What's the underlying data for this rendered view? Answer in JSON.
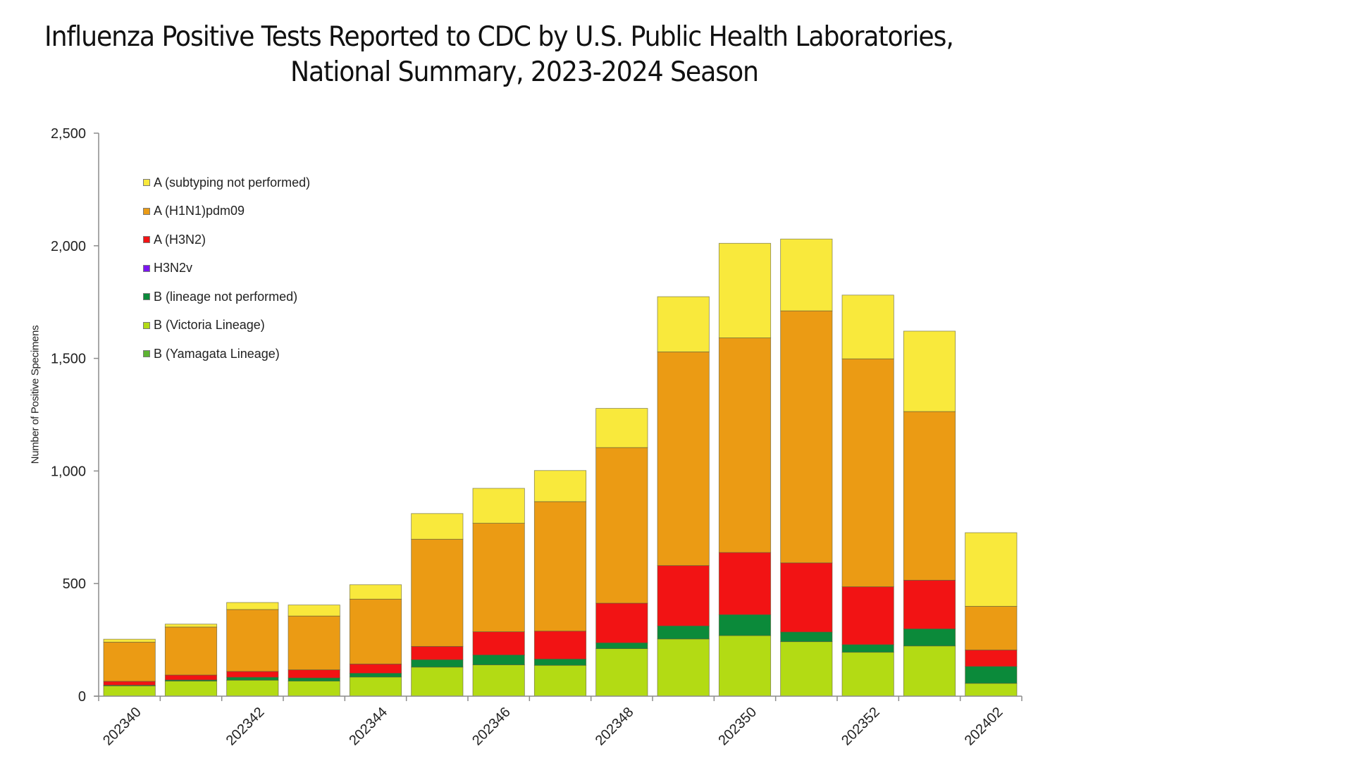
{
  "title": {
    "line1": "Influenza Positive Tests Reported to CDC by U.S. Public Health Laboratories,",
    "line2": "National Summary, 2023-2024 Season"
  },
  "chart_data": {
    "type": "bar",
    "stacked": true,
    "title": "Influenza Positive Tests Reported to CDC by U.S. Public Health Laboratories, National Summary, 2023-2024 Season",
    "xlabel": "",
    "ylabel": "Number of Positive Specimens",
    "ylim": [
      0,
      2500
    ],
    "yticks": [
      0,
      500,
      1000,
      1500,
      2000,
      2500
    ],
    "ytick_labels": [
      "0",
      "500",
      "1,000",
      "1,500",
      "2,000",
      "2,500"
    ],
    "grid": false,
    "legend_position": "top-left",
    "categories": [
      "202340",
      "202341",
      "202342",
      "202343",
      "202344",
      "202345",
      "202346",
      "202347",
      "202348",
      "202349",
      "202350",
      "202351",
      "202352",
      "202401",
      "202402"
    ],
    "xtick_labels_shown": [
      "202340",
      "202342",
      "202344",
      "202346",
      "202348",
      "202350",
      "202352",
      "202402"
    ],
    "series": [
      {
        "name": "B (Yamagata Lineage)",
        "color": "#5DB332",
        "values": [
          0,
          0,
          0,
          0,
          0,
          0,
          0,
          0,
          0,
          0,
          0,
          0,
          0,
          0,
          0
        ]
      },
      {
        "name": "B (Victoria Lineage)",
        "color": "#B3DB14",
        "values": [
          46,
          67,
          71,
          67,
          85,
          129,
          139,
          137,
          211,
          254,
          269,
          242,
          195,
          223,
          57
        ]
      },
      {
        "name": "B (lineage not performed)",
        "color": "#0B8A3A",
        "values": [
          3,
          5,
          13,
          14,
          17,
          33,
          44,
          28,
          26,
          58,
          93,
          43,
          34,
          76,
          75
        ]
      },
      {
        "name": "H3N2v",
        "color": "#7A14F0",
        "values": [
          0,
          0,
          0,
          0,
          0,
          0,
          0,
          0,
          0,
          0,
          0,
          0,
          0,
          0,
          0
        ]
      },
      {
        "name": "A (H3N2)",
        "color": "#F21314",
        "values": [
          17,
          22,
          26,
          36,
          41,
          59,
          103,
          124,
          176,
          268,
          276,
          307,
          257,
          216,
          73
        ]
      },
      {
        "name": "A (H1N1)pdm09",
        "color": "#EB9B14",
        "values": [
          174,
          213,
          275,
          239,
          288,
          476,
          482,
          575,
          691,
          949,
          953,
          1119,
          1012,
          749,
          194
        ]
      },
      {
        "name": "A (subtyping not performed)",
        "color": "#F9E93C",
        "values": [
          13,
          13,
          31,
          49,
          64,
          114,
          155,
          138,
          174,
          245,
          420,
          319,
          283,
          357,
          327
        ]
      }
    ],
    "legend_order": [
      "A (subtyping not performed)",
      "A (H1N1)pdm09",
      "A (H3N2)",
      "H3N2v",
      "B (lineage not performed)",
      "B (Victoria Lineage)",
      "B (Yamagata Lineage)"
    ]
  }
}
